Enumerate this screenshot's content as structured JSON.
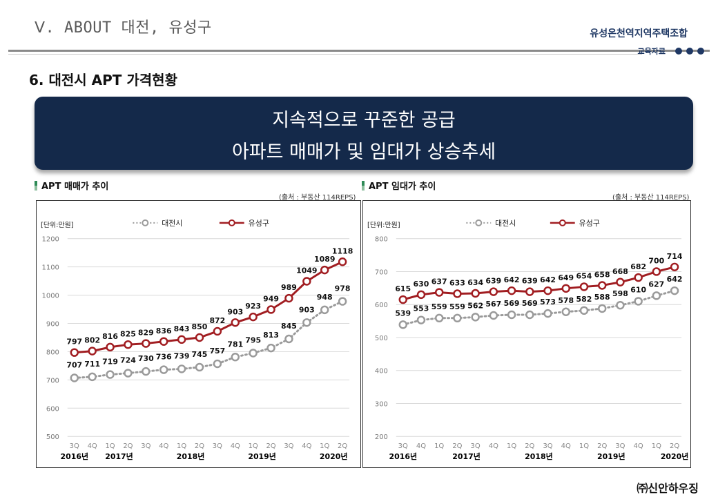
{
  "header": {
    "section_title": "Ⅴ. ABOUT 대전, 유성구",
    "org_name": "유성온천역지역주택조합",
    "edu_label": "교육자료"
  },
  "page_subtitle": "6. 대전시 APT 가격현황",
  "banner": {
    "line1": "지속적으로 꾸준한 공급",
    "line2": "아파트 매매가 및 임대가 상승추세"
  },
  "footer": {
    "company": "㈜신안하우징"
  },
  "colors": {
    "navy": "#14294a",
    "red": "#a11d21",
    "gray": "#9a9a9a",
    "accent_green": "#2e8b57"
  },
  "chart_data": [
    {
      "type": "line",
      "title": "APT 매매가 추이",
      "source": "(출처 : 부동산 114REPS)",
      "unit": "[단위:만원]",
      "categories": [
        "3Q",
        "4Q",
        "1Q",
        "2Q",
        "3Q",
        "4Q",
        "1Q",
        "2Q",
        "3Q",
        "4Q",
        "1Q",
        "2Q",
        "3Q",
        "4Q",
        "1Q",
        "2Q"
      ],
      "year_labels": [
        {
          "label": "2016년",
          "index": 0
        },
        {
          "label": "2017년",
          "index": 2.5
        },
        {
          "label": "2018년",
          "index": 6.5
        },
        {
          "label": "2019년",
          "index": 10.5
        },
        {
          "label": "2020년",
          "index": 14.5
        }
      ],
      "ylim": [
        500,
        1200
      ],
      "yticks": [
        500,
        600,
        700,
        800,
        900,
        1000,
        1100,
        1200
      ],
      "grid": true,
      "legend": "top",
      "series": [
        {
          "name": "대전시",
          "style": "dotted",
          "color": "#9a9a9a",
          "values": [
            707,
            711,
            719,
            724,
            730,
            736,
            739,
            745,
            757,
            781,
            795,
            813,
            845,
            903,
            948,
            978
          ]
        },
        {
          "name": "유성구",
          "style": "solid",
          "color": "#a11d21",
          "values": [
            797,
            802,
            816,
            825,
            829,
            836,
            843,
            850,
            872,
            903,
            923,
            949,
            989,
            1049,
            1089,
            1118
          ]
        }
      ]
    },
    {
      "type": "line",
      "title": "APT 임대가 추이",
      "source": "(출처 : 부동산 114REPS)",
      "unit": "[단위:만원]",
      "categories": [
        "3Q",
        "4Q",
        "1Q",
        "2Q",
        "3Q",
        "4Q",
        "1Q",
        "2Q",
        "3Q",
        "4Q",
        "1Q",
        "2Q",
        "3Q",
        "4Q",
        "1Q",
        "2Q"
      ],
      "year_labels": [
        {
          "label": "2016년",
          "index": 0
        },
        {
          "label": "2017년",
          "index": 3.5
        },
        {
          "label": "2018년",
          "index": 7.5
        },
        {
          "label": "2019년",
          "index": 11.5
        },
        {
          "label": "2020년",
          "index": 15
        }
      ],
      "ylim": [
        200,
        800
      ],
      "yticks": [
        200,
        300,
        400,
        500,
        600,
        700,
        800
      ],
      "grid": true,
      "legend": "top",
      "series": [
        {
          "name": "대전시",
          "style": "dotted",
          "color": "#9a9a9a",
          "values": [
            539,
            553,
            559,
            559,
            562,
            567,
            569,
            569,
            573,
            578,
            582,
            588,
            598,
            610,
            627,
            642
          ]
        },
        {
          "name": "유성구",
          "style": "solid",
          "color": "#a11d21",
          "values": [
            615,
            630,
            637,
            633,
            634,
            639,
            642,
            639,
            642,
            649,
            654,
            658,
            668,
            682,
            700,
            714
          ]
        }
      ]
    }
  ]
}
